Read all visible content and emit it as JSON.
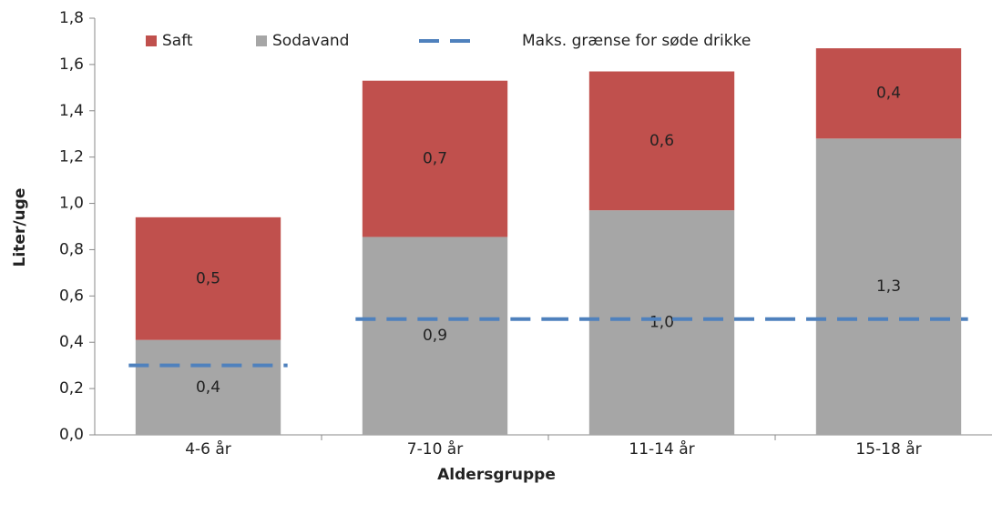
{
  "chart_data": {
    "type": "bar",
    "stacked": true,
    "x_label": "Aldersgruppe",
    "y_label": "Liter/uge",
    "categories": [
      "4-6 år",
      "7-10 år",
      "11-14 år",
      "15-18 år"
    ],
    "series": [
      {
        "name": "Sodavand",
        "color": "#a6a6a6",
        "values": [
          0.41,
          0.855,
          0.97,
          1.28
        ],
        "value_labels": [
          "0,4",
          "0,9",
          "1,0",
          "1,3"
        ]
      },
      {
        "name": "Saft",
        "color": "#c0504d",
        "values": [
          0.53,
          0.675,
          0.6,
          0.39
        ],
        "value_labels": [
          "0,5",
          "0,7",
          "0,6",
          "0,4"
        ]
      },
      {
        "name": "Maks. grænse for søde drikke",
        "type": "line",
        "dashed": true,
        "color": "#4f81bd",
        "values": [
          0.3,
          0.5,
          0.5,
          0.5
        ]
      }
    ],
    "legend_order": [
      1,
      0,
      2
    ],
    "ylim": [
      0,
      1.8
    ],
    "yticks": [
      {
        "value": 0,
        "label": "0,0"
      },
      {
        "value": 0.2,
        "label": "0,2"
      },
      {
        "value": 0.4,
        "label": "0,4"
      },
      {
        "value": 0.6,
        "label": "0,6"
      },
      {
        "value": 0.8,
        "label": "0,8"
      },
      {
        "value": 1.0,
        "label": "1,0"
      },
      {
        "value": 1.2,
        "label": "1,2"
      },
      {
        "value": 1.4,
        "label": "1,4"
      },
      {
        "value": 1.6,
        "label": "1,6"
      },
      {
        "value": 1.8,
        "label": "1,8"
      }
    ],
    "grid": false,
    "legend": "top"
  }
}
